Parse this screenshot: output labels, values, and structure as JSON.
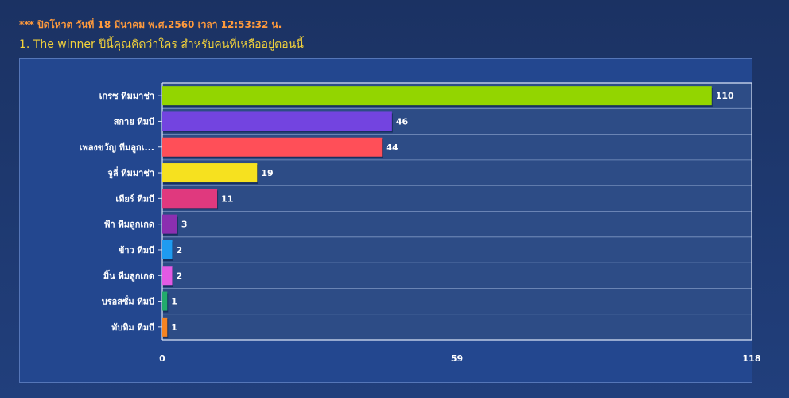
{
  "header": {
    "notice": "*** ปิดโหวต วันที่ 18 มีนาคม พ.ศ.2560 เวลา 12:53:32 น.",
    "question": "1. The winner ปีนี้คุณคิดว่าใคร สำหรับคนที่เหลืออยู่ตอนนี้"
  },
  "chart_data": {
    "type": "bar",
    "orientation": "horizontal",
    "title": "",
    "xlabel": "",
    "ylabel": "",
    "categories": [
      "เกรซ ทีมมาช่า",
      "สกาย ทีมบี",
      "เพลงขวัญ ทีมลูกเ...",
      "จูลี่ ทีมมาช่า",
      "เทียร์ ทีมบี",
      "ฟ้า ทีมลูกเกด",
      "ข้าว ทีมบี",
      "มิ้น ทีมลูกเกด",
      "บรอสซั่ม ทีมบี",
      "ทับทิม ทีมบี"
    ],
    "values": [
      110,
      46,
      44,
      19,
      11,
      3,
      2,
      2,
      1,
      1
    ],
    "colors": [
      "#93d500",
      "#7344e0",
      "#ff4f58",
      "#f6e11f",
      "#e0397e",
      "#8b2fb0",
      "#1f9bf0",
      "#e25ae4",
      "#22ab6c",
      "#f58423"
    ],
    "xlim": [
      0,
      118
    ],
    "xticks": [
      "0",
      "59",
      "118"
    ],
    "grid": true,
    "data_labels": true
  }
}
